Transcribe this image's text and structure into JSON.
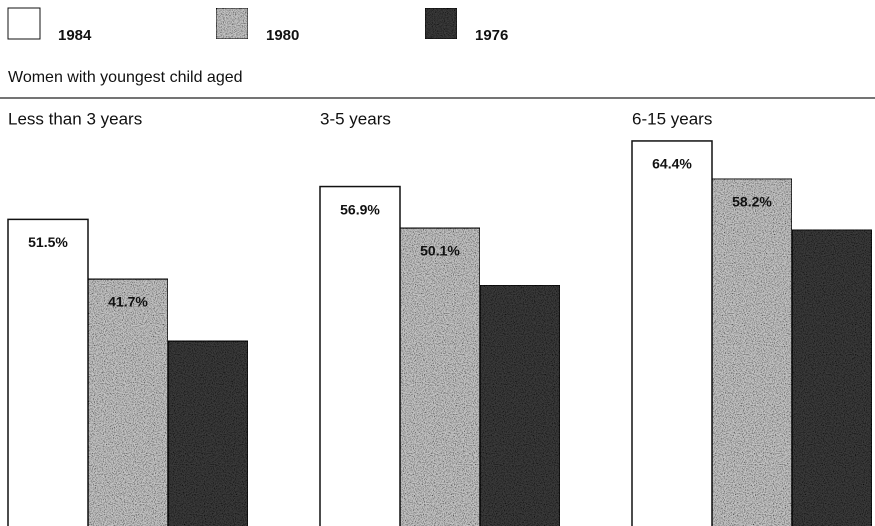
{
  "chart_data": {
    "type": "bar",
    "subtitle": "Women with youngest child aged",
    "categories": [
      "Less than 3 years",
      "3-5 years",
      "6-15 years"
    ],
    "series": [
      {
        "name": "1984",
        "color": "#ffffff",
        "values": [
          51.5,
          56.9,
          64.4
        ],
        "value_labels": [
          "51.5%",
          "56.9%",
          "64.4%"
        ]
      },
      {
        "name": "1980",
        "color": "#c4c4c4",
        "values": [
          41.7,
          50.1,
          58.2
        ],
        "value_labels": [
          "41.7%",
          "50.1%",
          "58.2%"
        ]
      },
      {
        "name": "1976",
        "color": "#3a3a3a",
        "values": [
          31.5,
          40.7,
          49.8
        ]
      }
    ]
  }
}
